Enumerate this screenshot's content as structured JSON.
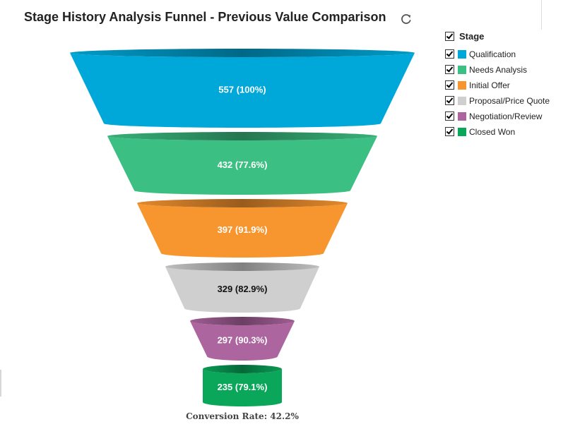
{
  "title": "Stage History Analysis Funnel - Previous Value Comparison",
  "refresh_icon": "refresh-icon",
  "legend": {
    "header": "Stage",
    "header_checked": true,
    "items": [
      {
        "label": "Qualification",
        "color": "#00a8d9",
        "checked": true
      },
      {
        "label": "Needs Analysis",
        "color": "#3cbf82",
        "checked": true
      },
      {
        "label": "Initial Offer",
        "color": "#f7952f",
        "checked": true
      },
      {
        "label": "Proposal/Price Quote",
        "color": "#cfcfcf",
        "checked": true
      },
      {
        "label": "Negotiation/Review",
        "color": "#ad659f",
        "checked": true
      },
      {
        "label": "Closed Won",
        "color": "#0aa75a",
        "checked": true
      }
    ]
  },
  "chart_data": {
    "type": "funnel",
    "categories": [
      "Qualification",
      "Needs Analysis",
      "Initial Offer",
      "Proposal/Price Quote",
      "Negotiation/Review",
      "Closed Won"
    ],
    "values": [
      557,
      432,
      397,
      329,
      297,
      235
    ],
    "labels": [
      "557 (100%)",
      "432 (77.6%)",
      "397 (91.9%)",
      "329 (82.9%)",
      "297 (90.3%)",
      "235 (79.1%)"
    ],
    "percent_of_previous": [
      100,
      77.6,
      91.9,
      82.9,
      90.3,
      79.1
    ],
    "colors": [
      "#00a8d9",
      "#3cbf82",
      "#f7952f",
      "#cfcfcf",
      "#ad659f",
      "#0aa75a"
    ],
    "label_colors": [
      "#ffffff",
      "#ffffff",
      "#ffffff",
      "#111111",
      "#ffffff",
      "#ffffff"
    ],
    "conversion_rate_label": "Conversion Rate: 42.2%"
  }
}
